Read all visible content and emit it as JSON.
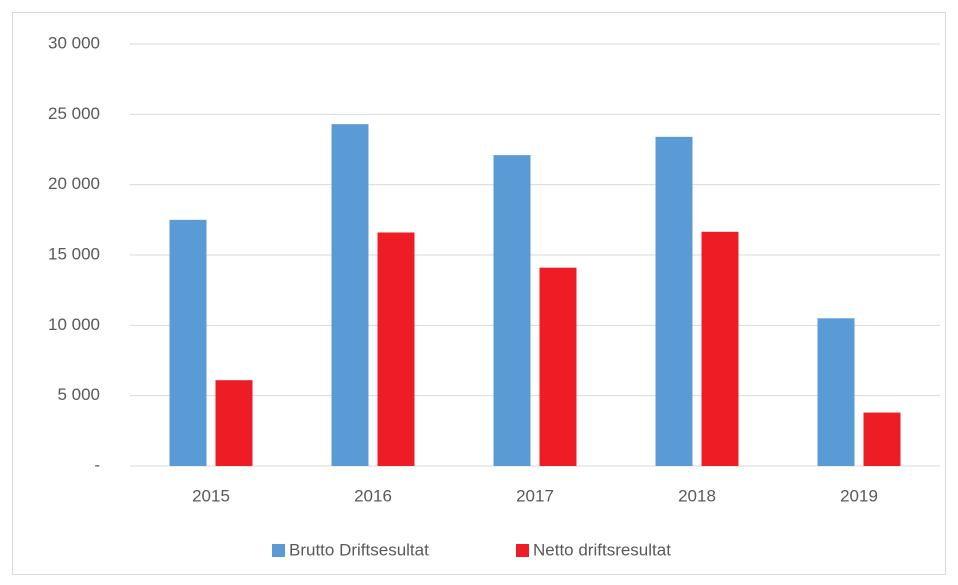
{
  "chart_data": {
    "type": "bar",
    "categories": [
      "2015",
      "2016",
      "2017",
      "2018",
      "2019"
    ],
    "series": [
      {
        "name": "Brutto Driftsesultat",
        "color": "#5b9bd5",
        "values": [
          17500,
          24300,
          22100,
          23400,
          10500
        ]
      },
      {
        "name": "Netto driftsresultat",
        "color": "#ee1c25",
        "values": [
          6100,
          16600,
          14100,
          16650,
          3800
        ]
      }
    ],
    "ylim": [
      0,
      30000
    ],
    "yticks": [
      {
        "value": 0,
        "label": "-"
      },
      {
        "value": 5000,
        "label": "5 000"
      },
      {
        "value": 10000,
        "label": "10 000"
      },
      {
        "value": 15000,
        "label": "15 000"
      },
      {
        "value": 20000,
        "label": "20 000"
      },
      {
        "value": 25000,
        "label": "25 000"
      },
      {
        "value": 30000,
        "label": "30 000"
      }
    ],
    "grid": true,
    "legend": "bottom"
  }
}
